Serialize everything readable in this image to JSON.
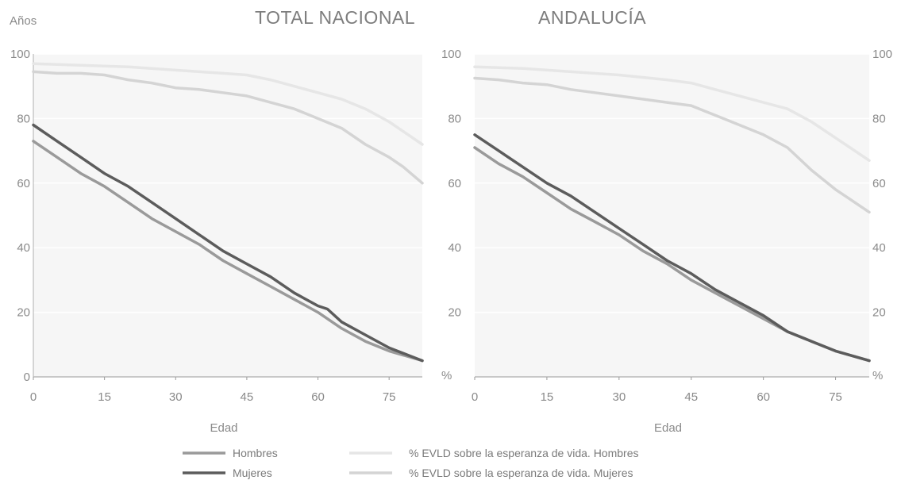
{
  "chart_data": [
    {
      "type": "line",
      "title": "TOTAL NACIONAL",
      "xlabel": "Edad",
      "ylabel": "Años",
      "xlim": [
        0,
        82
      ],
      "ylim": [
        0,
        100
      ],
      "xticks": [
        "0",
        "15",
        "30",
        "45",
        "60",
        "75"
      ],
      "yticks": [
        "0",
        "20",
        "40",
        "60",
        "80",
        "100"
      ],
      "series": [
        {
          "name": "Hombres",
          "color": "#9a9a9a",
          "x": [
            0,
            5,
            10,
            15,
            20,
            25,
            30,
            35,
            40,
            45,
            50,
            55,
            60,
            65,
            70,
            75,
            82
          ],
          "y": [
            73,
            68,
            63,
            59,
            54,
            49,
            45,
            41,
            36,
            32,
            28,
            24,
            20,
            15,
            11,
            8,
            5
          ]
        },
        {
          "name": "Mujeres",
          "color": "#5c5c5c",
          "x": [
            0,
            5,
            10,
            15,
            20,
            25,
            30,
            35,
            40,
            45,
            50,
            55,
            60,
            62,
            65,
            70,
            75,
            82
          ],
          "y": [
            78,
            73,
            68,
            63,
            59,
            54,
            49,
            44,
            39,
            35,
            31,
            26,
            22,
            21,
            17,
            13,
            9,
            5
          ]
        },
        {
          "name": "% EVLD sobre la esperanza de vida. Hombres",
          "color": "#e6e6e6",
          "x": [
            0,
            10,
            20,
            30,
            40,
            45,
            50,
            55,
            60,
            65,
            70,
            75,
            78,
            82
          ],
          "y": [
            97,
            96.5,
            96,
            95,
            94,
            93.5,
            92,
            90,
            88,
            86,
            83,
            79,
            76,
            72
          ]
        },
        {
          "name": "% EVLD sobre la esperanza de vida. Mujeres",
          "color": "#d4d4d4",
          "x": [
            0,
            5,
            10,
            15,
            20,
            25,
            30,
            35,
            40,
            45,
            50,
            55,
            60,
            65,
            70,
            75,
            78,
            82
          ],
          "y": [
            94.5,
            94,
            94,
            93.5,
            92,
            91,
            89.5,
            89,
            88,
            87,
            85,
            83,
            80,
            77,
            72,
            68,
            65,
            60
          ]
        }
      ]
    },
    {
      "type": "line",
      "title": "ANDALUCÍA",
      "xlabel": "Edad",
      "ylabel": "%",
      "xlim": [
        0,
        82
      ],
      "ylim": [
        0,
        100
      ],
      "xticks": [
        "0",
        "15",
        "30",
        "45",
        "60",
        "75"
      ],
      "yticks": [
        "0",
        "20",
        "40",
        "60",
        "80",
        "100"
      ],
      "series": [
        {
          "name": "Hombres",
          "color": "#9a9a9a",
          "x": [
            0,
            5,
            10,
            15,
            20,
            25,
            30,
            35,
            40,
            45,
            50,
            55,
            60,
            65,
            70,
            75,
            82
          ],
          "y": [
            71,
            66,
            62,
            57,
            52,
            48,
            44,
            39,
            35,
            30,
            26,
            22,
            18,
            14,
            11,
            8,
            5
          ]
        },
        {
          "name": "Mujeres",
          "color": "#5c5c5c",
          "x": [
            0,
            5,
            10,
            15,
            20,
            25,
            30,
            35,
            40,
            45,
            50,
            55,
            60,
            65,
            70,
            75,
            82
          ],
          "y": [
            75,
            70,
            65,
            60,
            56,
            51,
            46,
            41,
            36,
            32,
            27,
            23,
            19,
            14,
            11,
            8,
            5
          ]
        },
        {
          "name": "% EVLD sobre la esperanza de vida. Hombres",
          "color": "#e6e6e6",
          "x": [
            0,
            10,
            20,
            30,
            40,
            45,
            50,
            55,
            60,
            65,
            70,
            75,
            78,
            82
          ],
          "y": [
            96,
            95.5,
            94.5,
            93.5,
            92,
            91,
            89,
            87,
            85,
            83,
            79,
            74,
            71,
            67
          ]
        },
        {
          "name": "% EVLD sobre la esperanza de vida. Mujeres",
          "color": "#d4d4d4",
          "x": [
            0,
            5,
            10,
            15,
            20,
            25,
            30,
            35,
            40,
            45,
            50,
            55,
            60,
            65,
            70,
            75,
            78,
            82
          ],
          "y": [
            92.5,
            92,
            91,
            90.5,
            89,
            88,
            87,
            86,
            85,
            84,
            81,
            78,
            75,
            71,
            64,
            58,
            55,
            51
          ]
        }
      ]
    }
  ],
  "legend": [
    {
      "label": "Hombres",
      "color": "#9a9a9a"
    },
    {
      "label": "Mujeres",
      "color": "#5c5c5c"
    },
    {
      "label": "% EVLD sobre la esperanza de vida. Hombres",
      "color": "#e6e6e6"
    },
    {
      "label": "% EVLD sobre la esperanza de vida. Mujeres",
      "color": "#d4d4d4"
    }
  ]
}
